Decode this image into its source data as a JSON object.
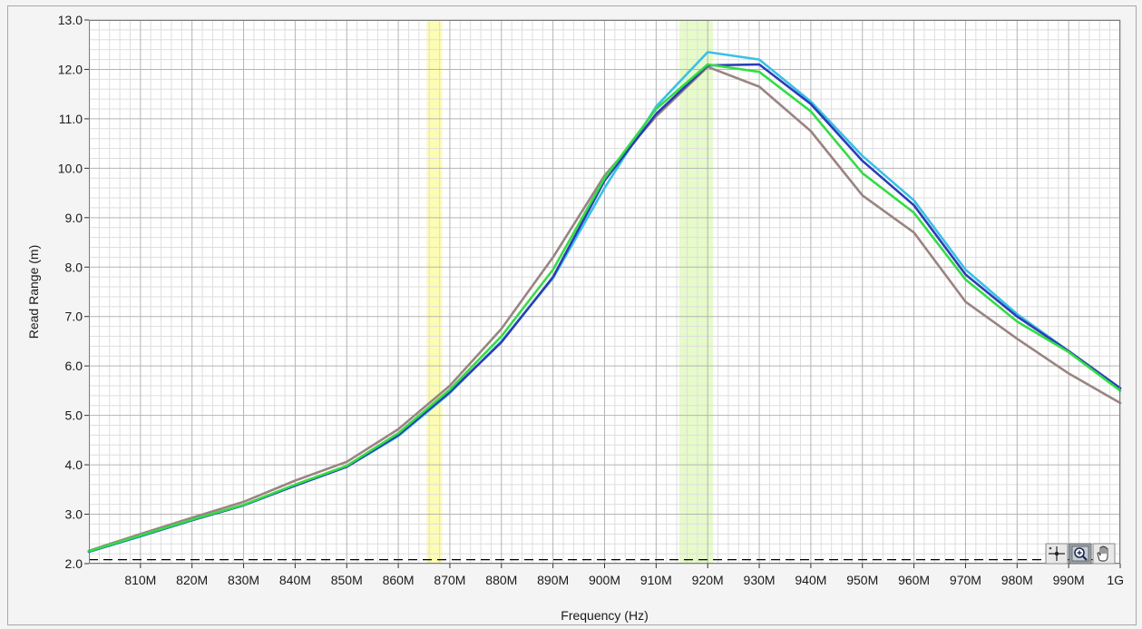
{
  "chart_data": {
    "type": "line",
    "title": "",
    "xlabel": "Frequency (Hz)",
    "ylabel": "Read Range (m)",
    "xlim": [
      800,
      1000
    ],
    "ylim": [
      2.0,
      13.0
    ],
    "x_tick_values": [
      810,
      820,
      830,
      840,
      850,
      860,
      870,
      880,
      890,
      900,
      910,
      920,
      930,
      940,
      950,
      960,
      970,
      980,
      990,
      1000
    ],
    "x_tick_labels": [
      "810M",
      "820M",
      "830M",
      "840M",
      "850M",
      "860M",
      "870M",
      "880M",
      "890M",
      "900M",
      "910M",
      "920M",
      "930M",
      "940M",
      "950M",
      "960M",
      "970M",
      "980M",
      "990M",
      "1G"
    ],
    "y_tick_values": [
      2,
      3,
      4,
      5,
      6,
      7,
      8,
      9,
      10,
      11,
      12,
      13
    ],
    "y_tick_labels": [
      "2.0",
      "3.0",
      "4.0",
      "5.0",
      "6.0",
      "7.0",
      "8.0",
      "9.0",
      "10.0",
      "11.0",
      "12.0",
      "13.0"
    ],
    "grid": true,
    "legend": "none",
    "bands": [
      {
        "from": 865.5,
        "to": 868.5,
        "color": "#fdfcb3"
      },
      {
        "from": 914.5,
        "to": 921.0,
        "color": "#e6fbc9"
      }
    ],
    "reference_line": {
      "y": 2.08,
      "style": "dashed",
      "color": "#000000"
    },
    "x": [
      800,
      810,
      820,
      830,
      840,
      850,
      860,
      870,
      880,
      890,
      900,
      910,
      920,
      930,
      940,
      950,
      960,
      970,
      980,
      990,
      1000
    ],
    "series": [
      {
        "color": "#9a8482",
        "values": [
          2.26,
          2.6,
          2.93,
          3.25,
          3.68,
          4.06,
          4.72,
          5.6,
          6.75,
          8.2,
          9.85,
          11.05,
          12.05,
          11.65,
          10.75,
          9.45,
          8.7,
          7.3,
          6.55,
          5.85,
          5.25
        ]
      },
      {
        "color": "#39c0e8",
        "values": [
          2.24,
          2.55,
          2.88,
          3.18,
          3.58,
          3.96,
          4.58,
          5.45,
          6.5,
          7.78,
          9.6,
          11.25,
          12.35,
          12.2,
          11.35,
          10.25,
          9.35,
          7.95,
          7.05,
          6.3,
          5.55
        ]
      },
      {
        "color": "#2b3cb5",
        "values": [
          2.24,
          2.56,
          2.88,
          3.18,
          3.58,
          3.96,
          4.6,
          5.47,
          6.48,
          7.8,
          9.75,
          11.1,
          12.08,
          12.1,
          11.3,
          10.15,
          9.25,
          7.85,
          7.0,
          6.3,
          5.55
        ]
      },
      {
        "color": "#33dd44",
        "values": [
          2.25,
          2.57,
          2.89,
          3.19,
          3.6,
          3.98,
          4.64,
          5.52,
          6.6,
          7.95,
          9.8,
          11.2,
          12.1,
          11.95,
          11.15,
          9.9,
          9.1,
          7.75,
          6.9,
          6.28,
          5.5
        ]
      }
    ]
  },
  "toolbar": {
    "tools": [
      {
        "name": "cursor-move-tool"
      },
      {
        "name": "zoom-tool"
      },
      {
        "name": "pan-hand-tool"
      }
    ]
  }
}
